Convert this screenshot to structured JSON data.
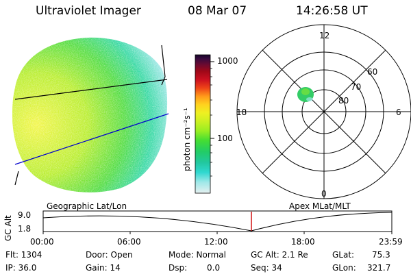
{
  "header": {
    "instrument": "Ultraviolet Imager",
    "date": "08 Mar 07",
    "time": "14:26:58 UT"
  },
  "colorbar": {
    "unit_label": "photon cm⁻²s⁻¹",
    "ticks": [
      "1000",
      "100"
    ]
  },
  "polar_plot": {
    "mlt_labels": {
      "top": "12",
      "left": "18",
      "right": "6",
      "bottom": "0"
    },
    "lat_labels": [
      "60",
      "70",
      "80"
    ]
  },
  "timeline": {
    "left_title": "Geographic Lat/Lon",
    "right_title": "Apex MLat/MLT",
    "ylabel": "GC Alt",
    "y_ticks": [
      "9.0",
      "1.8"
    ],
    "x_ticks": [
      "00:00",
      "06:00",
      "12:00",
      "18:00",
      "23:59"
    ],
    "current_marker": "14:26:58"
  },
  "status": {
    "flt": "Flt: 1304",
    "ip": "IP: 36.0",
    "door": "Door: Open",
    "gain": "Gain: 14",
    "mode": "Mode: Normal",
    "dsp": "Dsp:",
    "dsp_value": "0.0",
    "gc_alt": "GC Alt: 2.1 Re",
    "seq": "Seq: 34",
    "glat": "GLat:",
    "glat_value": "75.3",
    "glon": "GLon:",
    "glon_value": "321.7"
  },
  "colors": {
    "scale": [
      "#e6f0f0",
      "#9ee8e8",
      "#30d8d0",
      "#22c8a0",
      "#22cc66",
      "#44dd33",
      "#99ee22",
      "#ccf022",
      "#eef022",
      "#ffd21e",
      "#ff9a1a",
      "#ee4418",
      "#cc1020",
      "#a00818",
      "#6a0a30",
      "#3a0a3e",
      "#15052a"
    ],
    "day_glow_bright": "#eef53a",
    "day_glow_mid": "#66dd44",
    "day_glow_edge": "#3fd9a0",
    "aurora_spot": "#33cc66",
    "marker": "#cc0000",
    "terminator": "#0000cc"
  }
}
